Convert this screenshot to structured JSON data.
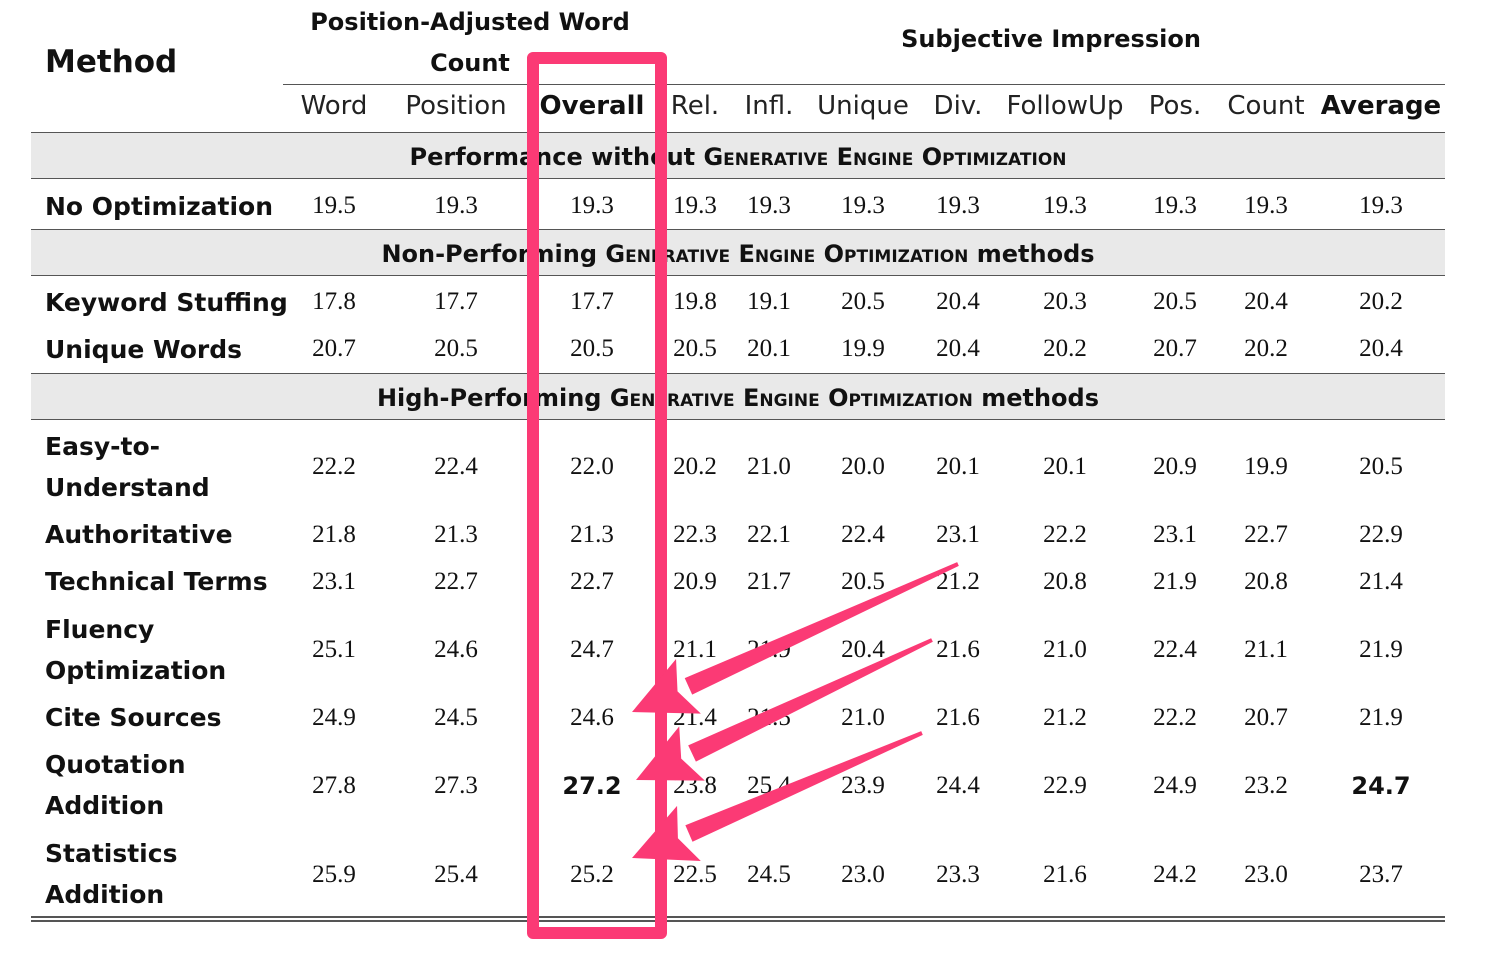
{
  "header": {
    "method_label": "Method",
    "group_word_count": "Position-Adjusted Word Count",
    "group_subjective": "Subjective Impression",
    "columns": [
      "Word",
      "Position",
      "Overall",
      "Rel.",
      "Infl.",
      "Unique",
      "Div.",
      "FollowUp",
      "Pos.",
      "Count",
      "Average"
    ],
    "bold_columns": [
      "Overall",
      "Average"
    ]
  },
  "sections": {
    "baseline": {
      "prefix": "Performance without ",
      "sc": "Generative Engine Optimization",
      "suffix": ""
    },
    "non_performing": {
      "prefix": "Non-Performing ",
      "sc": "Generative Engine Optimization",
      "suffix": " methods"
    },
    "high_performing": {
      "prefix": "High-Performing ",
      "sc": "Generative Engine Optimization",
      "suffix": " methods"
    }
  },
  "rows": {
    "no_opt": {
      "name": "No Optimization",
      "values": [
        "19.5",
        "19.3",
        "19.3",
        "19.3",
        "19.3",
        "19.3",
        "19.3",
        "19.3",
        "19.3",
        "19.3",
        "19.3"
      ]
    },
    "keyword": {
      "name": "Keyword Stuffing",
      "values": [
        "17.8",
        "17.7",
        "17.7",
        "19.8",
        "19.1",
        "20.5",
        "20.4",
        "20.3",
        "20.5",
        "20.4",
        "20.2"
      ]
    },
    "unique": {
      "name": "Unique Words",
      "values": [
        "20.7",
        "20.5",
        "20.5",
        "20.5",
        "20.1",
        "19.9",
        "20.4",
        "20.2",
        "20.7",
        "20.2",
        "20.4"
      ]
    },
    "easy": {
      "name_line1": "Easy-to-",
      "name_line2": "Understand",
      "values": [
        "22.2",
        "22.4",
        "22.0",
        "20.2",
        "21.0",
        "20.0",
        "20.1",
        "20.1",
        "20.9",
        "19.9",
        "20.5"
      ]
    },
    "authoritative": {
      "name": "Authoritative",
      "values": [
        "21.8",
        "21.3",
        "21.3",
        "22.3",
        "22.1",
        "22.4",
        "23.1",
        "22.2",
        "23.1",
        "22.7",
        "22.9"
      ]
    },
    "technical": {
      "name": "Technical Terms",
      "values": [
        "23.1",
        "22.7",
        "22.7",
        "20.9",
        "21.7",
        "20.5",
        "21.2",
        "20.8",
        "21.9",
        "20.8",
        "21.4"
      ]
    },
    "fluency": {
      "name_line1": "Fluency",
      "name_line2": "Optimization",
      "values": [
        "25.1",
        "24.6",
        "24.7",
        "21.1",
        "21.9",
        "20.4",
        "21.6",
        "21.0",
        "22.4",
        "21.1",
        "21.9"
      ]
    },
    "cite": {
      "name": "Cite Sources",
      "values": [
        "24.9",
        "24.5",
        "24.6",
        "21.4",
        "21.5",
        "21.0",
        "21.6",
        "21.2",
        "22.2",
        "20.7",
        "21.9"
      ]
    },
    "quotation": {
      "name_line1": "Quotation",
      "name_line2": "Addition",
      "values": [
        "27.8",
        "27.3",
        "27.2",
        "23.8",
        "25.4",
        "23.9",
        "24.4",
        "22.9",
        "24.9",
        "23.2",
        "24.7"
      ]
    },
    "statistics": {
      "name_line1": "Statistics",
      "name_line2": "Addition",
      "values": [
        "25.9",
        "25.4",
        "25.2",
        "22.5",
        "24.5",
        "23.0",
        "23.3",
        "21.6",
        "24.2",
        "23.0",
        "23.7"
      ]
    }
  },
  "bold_cells": {
    "quotation": [
      2,
      10
    ]
  },
  "annotation": {
    "color": "#fb3a75"
  }
}
